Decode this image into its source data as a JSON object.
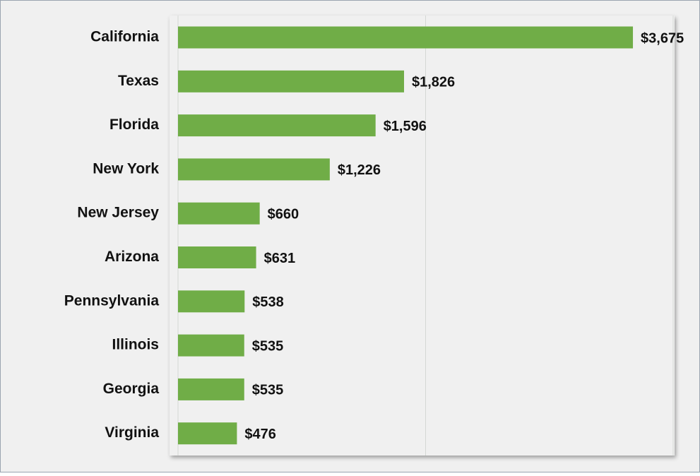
{
  "chart_data": {
    "type": "bar",
    "orientation": "horizontal",
    "categories": [
      "California",
      "Texas",
      "Florida",
      "New York",
      "New Jersey",
      "Arizona",
      "Pennsylvania",
      "Illinois",
      "Georgia",
      "Virginia"
    ],
    "values": [
      3675,
      1826,
      1596,
      1226,
      660,
      631,
      538,
      535,
      535,
      476
    ],
    "value_labels": [
      "$3,675",
      "$1,826",
      "$1,596",
      "$1,226",
      "$660",
      "$631",
      "$538",
      "$535",
      "$535",
      "$476"
    ],
    "color": "#70ad47",
    "xlim": [
      0,
      4000
    ],
    "xticks": [
      0,
      2000,
      4000
    ],
    "grid": true
  }
}
